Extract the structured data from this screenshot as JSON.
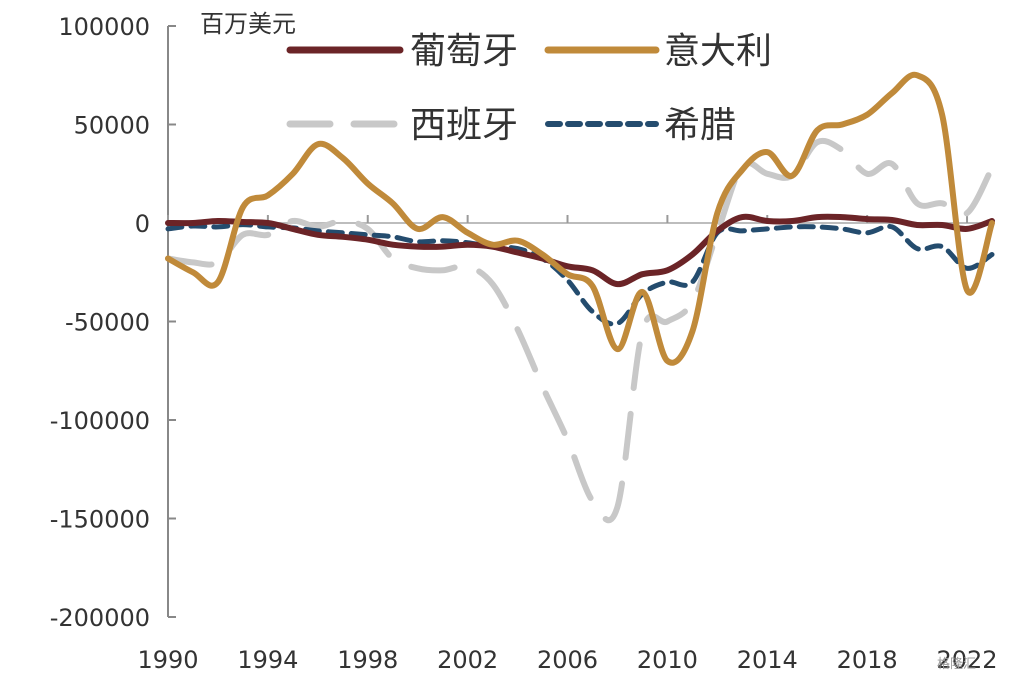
{
  "chart_data": {
    "type": "line",
    "unit_label": "百万美元",
    "x_ticks": [
      "1990",
      "1994",
      "1998",
      "2002",
      "2006",
      "2010",
      "2014",
      "2018",
      "2022"
    ],
    "y_ticks": [
      "100000",
      "50000",
      "0",
      "-50000",
      "-100000",
      "-150000",
      "-200000"
    ],
    "xlim": [
      1990,
      2023
    ],
    "ylim": [
      -200000,
      100000
    ],
    "legend_position": "top",
    "series": [
      {
        "name": "葡萄牙",
        "color": "#6b2427",
        "style": "solid",
        "x": [
          1990,
          1991,
          1992,
          1993,
          1994,
          1995,
          1996,
          1997,
          1998,
          1999,
          2000,
          2001,
          2002,
          2003,
          2004,
          2005,
          2006,
          2007,
          2008,
          2009,
          2010,
          2011,
          2012,
          2013,
          2014,
          2015,
          2016,
          2017,
          2018,
          2019,
          2020,
          2021,
          2022,
          2023
        ],
        "values": [
          0,
          0,
          1000,
          500,
          0,
          -3000,
          -6000,
          -7000,
          -8500,
          -11000,
          -12000,
          -12000,
          -11000,
          -12000,
          -15000,
          -18000,
          -22000,
          -24000,
          -31000,
          -26000,
          -24000,
          -16000,
          -4000,
          3000,
          1000,
          1000,
          3000,
          3000,
          2000,
          1500,
          -1000,
          -1000,
          -3000,
          1000
        ]
      },
      {
        "name": "意大利",
        "color": "#c08a3a",
        "style": "solid",
        "x": [
          1990,
          1991,
          1992,
          1993,
          1994,
          1995,
          1996,
          1997,
          1998,
          1999,
          2000,
          2001,
          2002,
          2003,
          2004,
          2005,
          2006,
          2007,
          2008,
          2009,
          2010,
          2011,
          2012,
          2013,
          2014,
          2015,
          2016,
          2017,
          2018,
          2019,
          2020,
          2021,
          2022,
          2023
        ],
        "values": [
          -18000,
          -25000,
          -30000,
          8000,
          14000,
          25000,
          40000,
          33000,
          20000,
          10000,
          -3000,
          3000,
          -5000,
          -11000,
          -9000,
          -16000,
          -26000,
          -32000,
          -64000,
          -35000,
          -70000,
          -55000,
          5000,
          27000,
          36000,
          24000,
          47000,
          50000,
          55000,
          66000,
          75000,
          55000,
          -34000,
          0
        ]
      },
      {
        "name": "西班牙",
        "color": "#c8c8c8",
        "style": "dashed",
        "x": [
          1990,
          1991,
          1992,
          1993,
          1994,
          1995,
          1996,
          1997,
          1998,
          1999,
          2000,
          2001,
          2002,
          2003,
          2004,
          2005,
          2006,
          2007,
          2008,
          2009,
          2010,
          2011,
          2012,
          2013,
          2014,
          2015,
          2016,
          2017,
          2018,
          2019,
          2020,
          2021,
          2022,
          2023
        ],
        "values": [
          -18000,
          -20000,
          -20000,
          -6000,
          -6000,
          1000,
          -2000,
          1000,
          -3000,
          -18000,
          -23000,
          -24000,
          -22000,
          -31000,
          -54000,
          -83000,
          -110000,
          -141000,
          -144000,
          -55000,
          -50000,
          -40000,
          -5000,
          29000,
          25000,
          24000,
          41000,
          37000,
          25000,
          30000,
          10000,
          10000,
          5000,
          28000
        ]
      },
      {
        "name": "希腊",
        "color": "#244c6e",
        "style": "dashed",
        "x": [
          1990,
          1991,
          1992,
          1993,
          1994,
          1995,
          1996,
          1997,
          1998,
          1999,
          2000,
          2001,
          2002,
          2003,
          2004,
          2005,
          2006,
          2007,
          2008,
          2009,
          2010,
          2011,
          2012,
          2013,
          2014,
          2015,
          2016,
          2017,
          2018,
          2019,
          2020,
          2021,
          2022,
          2023
        ],
        "values": [
          -3000,
          -1500,
          -2000,
          -800,
          -2000,
          -2500,
          -4000,
          -5000,
          -6000,
          -7000,
          -9500,
          -9000,
          -10000,
          -12000,
          -13000,
          -18000,
          -29000,
          -45000,
          -51000,
          -36000,
          -30000,
          -30000,
          -5000,
          -4000,
          -3000,
          -2000,
          -2000,
          -3000,
          -5000,
          -2000,
          -13000,
          -12000,
          -23000,
          -16000
        ]
      }
    ]
  },
  "watermark": "格隆汇"
}
